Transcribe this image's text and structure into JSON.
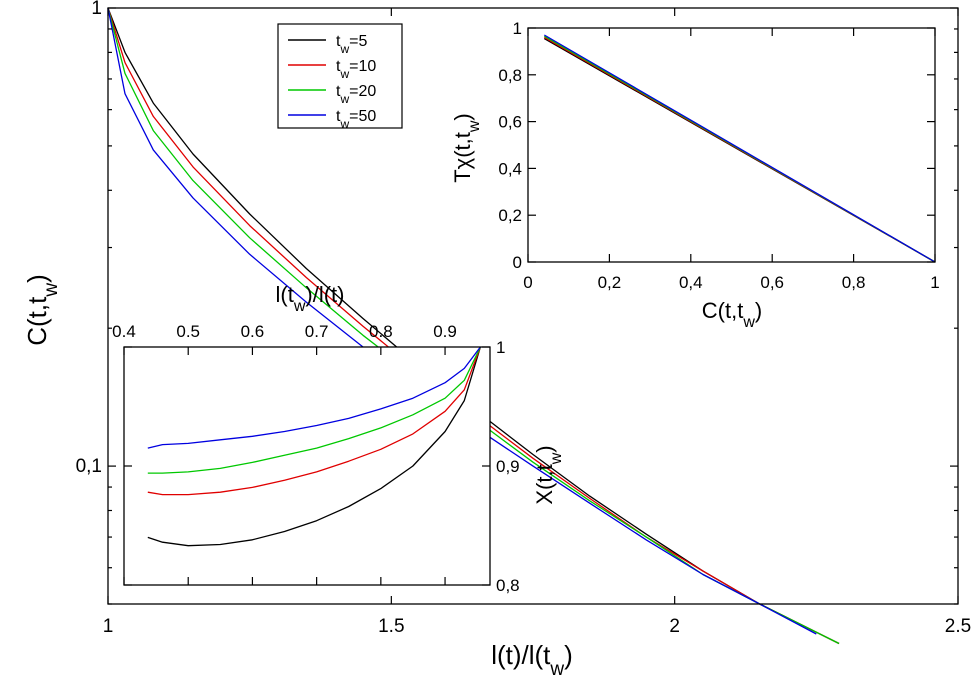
{
  "chart_data": [
    {
      "id": "main",
      "type": "line",
      "xlabel": "l(t)/l(t_w)",
      "ylabel": "C^(t,t_w)",
      "xlim": [
        1,
        2.5
      ],
      "ylim": [
        0.05,
        1
      ],
      "yscale": "log",
      "x_ticks": [
        "1",
        "1.5",
        "2",
        "2.5"
      ],
      "y_ticks": [
        "0,1",
        "1"
      ],
      "legend": {
        "position": "top-center",
        "entries": [
          {
            "label": "t_w=5",
            "color": "#000000"
          },
          {
            "label": "t_w=10",
            "color": "#e00000"
          },
          {
            "label": "t_w=20",
            "color": "#00c800"
          },
          {
            "label": "t_w=50",
            "color": "#0000e0"
          }
        ]
      },
      "series": [
        {
          "name": "t_w=5",
          "color": "#000000",
          "x": [
            1.0,
            1.03,
            1.08,
            1.15,
            1.25,
            1.35,
            1.45,
            1.55,
            1.65,
            1.75,
            1.85,
            1.95,
            2.05,
            2.15,
            2.29
          ],
          "y": [
            1.0,
            0.8,
            0.62,
            0.48,
            0.355,
            0.27,
            0.21,
            0.165,
            0.132,
            0.106,
            0.086,
            0.071,
            0.059,
            0.05,
            0.041
          ]
        },
        {
          "name": "t_w=10",
          "color": "#e00000",
          "x": [
            1.0,
            1.03,
            1.08,
            1.15,
            1.25,
            1.35,
            1.45,
            1.55,
            1.65,
            1.75,
            1.85,
            1.95,
            2.05,
            2.15,
            2.29
          ],
          "y": [
            1.0,
            0.76,
            0.58,
            0.45,
            0.335,
            0.258,
            0.202,
            0.16,
            0.129,
            0.104,
            0.085,
            0.07,
            0.059,
            0.05,
            0.041
          ]
        },
        {
          "name": "t_w=20",
          "color": "#00c800",
          "x": [
            1.0,
            1.03,
            1.08,
            1.15,
            1.25,
            1.35,
            1.45,
            1.55,
            1.65,
            1.75,
            1.85,
            1.95,
            2.05,
            2.15,
            2.29
          ],
          "y": [
            1.0,
            0.72,
            0.54,
            0.42,
            0.315,
            0.245,
            0.193,
            0.155,
            0.126,
            0.102,
            0.084,
            0.07,
            0.058,
            0.05,
            0.041
          ]
        },
        {
          "name": "t_w=50",
          "color": "#0000e0",
          "x": [
            1.0,
            1.03,
            1.08,
            1.15,
            1.25,
            1.35,
            1.45,
            1.55,
            1.65,
            1.75,
            1.85,
            1.95,
            2.05,
            2.15,
            2.25
          ],
          "y": [
            1.0,
            0.65,
            0.49,
            0.385,
            0.29,
            0.228,
            0.182,
            0.148,
            0.121,
            0.1,
            0.083,
            0.069,
            0.058,
            0.05,
            0.043
          ]
        }
      ]
    },
    {
      "id": "inset-right",
      "type": "line",
      "xlabel": "C^(t,t_w)",
      "ylabel": "Tχ^(t,t_w)",
      "xlim": [
        0,
        1
      ],
      "ylim": [
        0,
        1
      ],
      "x_ticks": [
        "0",
        "0,2",
        "0,4",
        "0,6",
        "0,8",
        "1"
      ],
      "y_ticks": [
        "0",
        "0,2",
        "0,4",
        "0,6",
        "0,8",
        "1"
      ],
      "series": [
        {
          "name": "t_w=5",
          "color": "#000000",
          "x": [
            0.04,
            1.0
          ],
          "y": [
            0.955,
            0.0
          ]
        },
        {
          "name": "t_w=10",
          "color": "#e00000",
          "x": [
            0.04,
            1.0
          ],
          "y": [
            0.96,
            0.0
          ]
        },
        {
          "name": "t_w=20",
          "color": "#00c800",
          "x": [
            0.04,
            1.0
          ],
          "y": [
            0.965,
            0.0
          ]
        },
        {
          "name": "t_w=50",
          "color": "#0000e0",
          "x": [
            0.04,
            1.0
          ],
          "y": [
            0.97,
            0.0
          ]
        }
      ]
    },
    {
      "id": "inset-left",
      "type": "line",
      "xlabel": "l(t_w)/l(t)",
      "ylabel": "X(t,t_w)",
      "xlim": [
        0.4,
        0.97
      ],
      "ylim": [
        0.8,
        1
      ],
      "x_ticks": [
        "0.4",
        "0.5",
        "0.6",
        "0.7",
        "0.8",
        "0.9"
      ],
      "y_ticks": [
        "0,8",
        "0,9",
        "1"
      ],
      "series": [
        {
          "name": "t_w=5",
          "color": "#000000",
          "x": [
            0.437,
            0.46,
            0.5,
            0.55,
            0.6,
            0.65,
            0.7,
            0.75,
            0.8,
            0.85,
            0.9,
            0.93,
            0.955
          ],
          "y": [
            0.84,
            0.836,
            0.833,
            0.834,
            0.838,
            0.845,
            0.854,
            0.866,
            0.881,
            0.9,
            0.929,
            0.955,
            1.0
          ]
        },
        {
          "name": "t_w=10",
          "color": "#e00000",
          "x": [
            0.437,
            0.46,
            0.5,
            0.55,
            0.6,
            0.65,
            0.7,
            0.75,
            0.8,
            0.85,
            0.9,
            0.93,
            0.955
          ],
          "y": [
            0.878,
            0.876,
            0.876,
            0.878,
            0.882,
            0.888,
            0.895,
            0.904,
            0.914,
            0.927,
            0.946,
            0.964,
            1.0
          ]
        },
        {
          "name": "t_w=20",
          "color": "#00c800",
          "x": [
            0.437,
            0.46,
            0.5,
            0.55,
            0.6,
            0.65,
            0.7,
            0.75,
            0.8,
            0.85,
            0.9,
            0.93,
            0.955
          ],
          "y": [
            0.894,
            0.894,
            0.895,
            0.898,
            0.903,
            0.909,
            0.915,
            0.923,
            0.932,
            0.943,
            0.957,
            0.972,
            1.0
          ]
        },
        {
          "name": "t_w=50",
          "color": "#0000e0",
          "x": [
            0.437,
            0.46,
            0.5,
            0.55,
            0.6,
            0.65,
            0.7,
            0.75,
            0.8,
            0.85,
            0.9,
            0.93,
            0.955
          ],
          "y": [
            0.915,
            0.918,
            0.919,
            0.922,
            0.925,
            0.929,
            0.934,
            0.94,
            0.948,
            0.957,
            0.97,
            0.982,
            1.0
          ]
        }
      ]
    }
  ]
}
